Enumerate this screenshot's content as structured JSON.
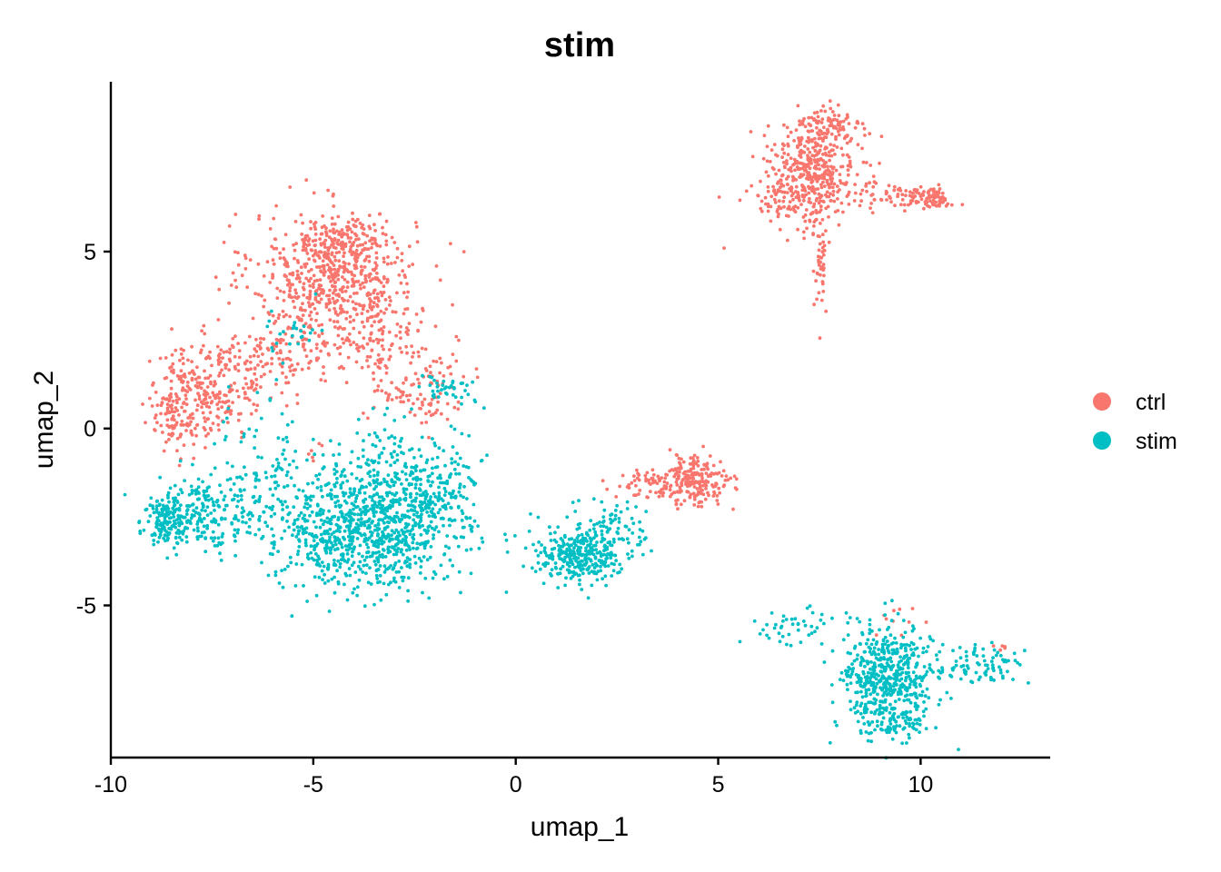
{
  "chart_data": {
    "type": "scatter",
    "title": "stim",
    "xlabel": "umap_1",
    "ylabel": "umap_2",
    "xlim": [
      -10,
      13.2
    ],
    "ylim": [
      -9.3,
      9.8
    ],
    "x_ticks": [
      -10,
      -5,
      0,
      5,
      10
    ],
    "y_ticks": [
      5,
      0,
      -5
    ],
    "legend_position": "right",
    "grid": false,
    "series": [
      {
        "name": "ctrl",
        "color": "#F8766D",
        "clusters": [
          {
            "cx": -4.5,
            "cy": 4.3,
            "sx": 1.0,
            "sy": 0.9,
            "n": 600
          },
          {
            "cx": -4.2,
            "cy": 5.3,
            "sx": 0.6,
            "sy": 0.3,
            "n": 100
          },
          {
            "cx": -7.6,
            "cy": 1.1,
            "sx": 0.7,
            "sy": 0.7,
            "n": 260
          },
          {
            "cx": -8.4,
            "cy": 0.3,
            "sx": 0.25,
            "sy": 0.5,
            "n": 80
          },
          {
            "cx": -6.0,
            "cy": 2.0,
            "sx": 0.6,
            "sy": 0.5,
            "n": 110
          },
          {
            "cx": -3.5,
            "cy": 2.5,
            "sx": 0.8,
            "sy": 0.5,
            "n": 120
          },
          {
            "cx": -2.8,
            "cy": 1.0,
            "sx": 0.5,
            "sy": 0.35,
            "n": 50
          },
          {
            "cx": -2.0,
            "cy": 0.5,
            "sx": 0.3,
            "sy": 0.25,
            "n": 25
          },
          {
            "cx": -1.8,
            "cy": 1.6,
            "sx": 0.5,
            "sy": 0.3,
            "n": 25
          },
          {
            "cx": -5.0,
            "cy": -0.6,
            "sx": 0.12,
            "sy": 0.2,
            "n": 6
          },
          {
            "cx": 7.3,
            "cy": 7.2,
            "sx": 0.55,
            "sy": 0.75,
            "n": 420
          },
          {
            "cx": 7.8,
            "cy": 8.5,
            "sx": 0.4,
            "sy": 0.3,
            "n": 80
          },
          {
            "cx": 6.5,
            "cy": 6.5,
            "sx": 0.35,
            "sy": 0.3,
            "n": 40
          },
          {
            "cx": 8.9,
            "cy": 6.6,
            "sx": 0.5,
            "sy": 0.25,
            "n": 40
          },
          {
            "cx": 10.1,
            "cy": 6.5,
            "sx": 0.35,
            "sy": 0.15,
            "n": 100
          },
          {
            "cx": 7.55,
            "cy": 4.5,
            "sx": 0.08,
            "sy": 0.6,
            "n": 40
          },
          {
            "cx": 4.4,
            "cy": -1.5,
            "sx": 0.45,
            "sy": 0.35,
            "n": 220
          },
          {
            "cx": 3.3,
            "cy": -1.5,
            "sx": 0.45,
            "sy": 0.2,
            "n": 45
          },
          {
            "cx": 9.3,
            "cy": -5.5,
            "sx": 0.5,
            "sy": 0.2,
            "n": 10
          },
          {
            "cx": 12.0,
            "cy": -6.2,
            "sx": 0.1,
            "sy": 0.1,
            "n": 5
          }
        ]
      },
      {
        "name": "stim",
        "color": "#00BFC4",
        "clusters": [
          {
            "cx": -3.7,
            "cy": -2.8,
            "sx": 1.1,
            "sy": 0.85,
            "n": 950
          },
          {
            "cx": -2.6,
            "cy": -1.6,
            "sx": 1.0,
            "sy": 0.6,
            "n": 150
          },
          {
            "cx": -1.7,
            "cy": -1.5,
            "sx": 0.45,
            "sy": 0.6,
            "n": 60
          },
          {
            "cx": -7.8,
            "cy": -2.3,
            "sx": 0.65,
            "sy": 0.5,
            "n": 220
          },
          {
            "cx": -8.6,
            "cy": -2.6,
            "sx": 0.25,
            "sy": 0.3,
            "n": 110
          },
          {
            "cx": -6.2,
            "cy": -1.3,
            "sx": 0.7,
            "sy": 0.9,
            "n": 110
          },
          {
            "cx": -5.5,
            "cy": 2.7,
            "sx": 0.5,
            "sy": 0.4,
            "n": 25
          },
          {
            "cx": -1.6,
            "cy": 1.1,
            "sx": 0.35,
            "sy": 0.25,
            "n": 40
          },
          {
            "cx": -3.2,
            "cy": -0.3,
            "sx": 0.5,
            "sy": 0.4,
            "n": 30
          },
          {
            "cx": 1.6,
            "cy": -3.6,
            "sx": 0.5,
            "sy": 0.35,
            "n": 300
          },
          {
            "cx": 2.3,
            "cy": -2.7,
            "sx": 0.5,
            "sy": 0.4,
            "n": 70
          },
          {
            "cx": 0.6,
            "cy": -3.2,
            "sx": 0.6,
            "sy": 0.6,
            "n": 18
          },
          {
            "cx": 9.2,
            "cy": -7.1,
            "sx": 0.55,
            "sy": 0.75,
            "n": 520
          },
          {
            "cx": 7.0,
            "cy": -5.6,
            "sx": 0.55,
            "sy": 0.25,
            "n": 45
          },
          {
            "cx": 11.4,
            "cy": -6.7,
            "sx": 0.6,
            "sy": 0.3,
            "n": 90
          },
          {
            "cx": 9.3,
            "cy": -8.3,
            "sx": 0.4,
            "sy": 0.25,
            "n": 60
          }
        ]
      }
    ]
  }
}
